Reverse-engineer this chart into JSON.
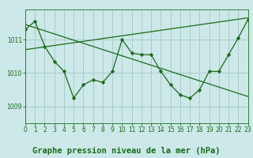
{
  "background_color": "#cce8e8",
  "grid_color": "#aacccc",
  "line_color": "#1a6b1a",
  "marker_color": "#1a6b1a",
  "title": "Graphe pression niveau de la mer (hPa)",
  "xlim": [
    0,
    23
  ],
  "ylim": [
    1008.5,
    1011.9
  ],
  "yticks": [
    1009,
    1010,
    1011
  ],
  "xticks": [
    0,
    1,
    2,
    3,
    4,
    5,
    6,
    7,
    8,
    9,
    10,
    11,
    12,
    13,
    14,
    15,
    16,
    17,
    18,
    19,
    20,
    21,
    22,
    23
  ],
  "series1_x": [
    0,
    1,
    2,
    3,
    4,
    5,
    6,
    7,
    8,
    9,
    10,
    11,
    12,
    13,
    14,
    15,
    16,
    17,
    18,
    19,
    20,
    21,
    22,
    23
  ],
  "series1_y": [
    1011.3,
    1011.55,
    1010.8,
    1010.35,
    1010.05,
    1009.25,
    1009.65,
    1009.8,
    1009.72,
    1010.05,
    1011.0,
    1010.6,
    1010.55,
    1010.55,
    1010.05,
    1009.65,
    1009.35,
    1009.25,
    1009.5,
    1010.05,
    1010.05,
    1010.55,
    1011.05,
    1011.6
  ],
  "series2_x": [
    0,
    23
  ],
  "series2_y": [
    1011.45,
    1009.3
  ],
  "series3_x": [
    0,
    23
  ],
  "series3_y": [
    1010.7,
    1011.65
  ],
  "title_fontsize": 7.5,
  "tick_fontsize": 5.5
}
